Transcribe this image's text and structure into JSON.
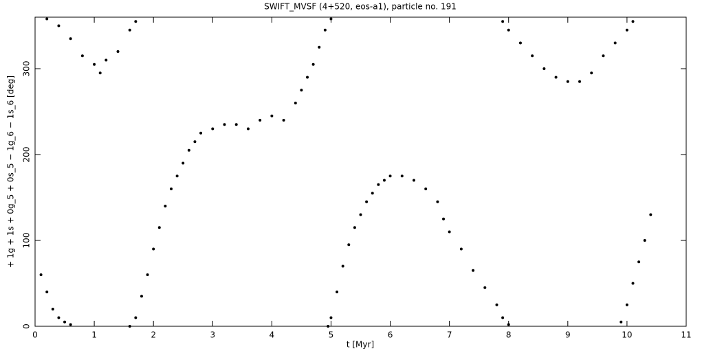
{
  "chart_data": {
    "type": "scatter",
    "title": "SWIFT_MVSF (4+520, eos-a1), particle no. 191",
    "x_label": "t [Myr]",
    "y_label": "+ 1g + 1s + 0g_5 + 0s_5 − 1g_6 − 1s_6 [deg]",
    "color": "#000000",
    "xlim": [
      0,
      11
    ],
    "xticks": [
      0,
      1,
      2,
      3,
      4,
      5,
      6,
      7,
      8,
      9,
      10,
      11
    ],
    "ylim": [
      0,
      360
    ],
    "yticks": [
      0,
      100,
      200,
      300
    ],
    "x": [
      0.1,
      0.2,
      0.3,
      0.4,
      0.5,
      0.6,
      0.2,
      0.4,
      0.6,
      0.8,
      1.0,
      1.1,
      1.2,
      1.4,
      1.6,
      1.7,
      1.6,
      1.7,
      1.8,
      1.9,
      2.0,
      2.1,
      2.2,
      2.3,
      2.4,
      2.5,
      2.6,
      2.7,
      2.8,
      3.0,
      3.2,
      3.4,
      3.6,
      3.8,
      4.0,
      4.2,
      4.4,
      4.5,
      4.6,
      4.7,
      4.8,
      4.9,
      5.0,
      4.95,
      5.0,
      5.1,
      5.2,
      5.3,
      5.4,
      5.5,
      5.6,
      5.7,
      5.8,
      5.9,
      6.0,
      6.2,
      6.4,
      6.6,
      6.8,
      6.9,
      7.0,
      7.2,
      7.4,
      7.6,
      7.8,
      7.9,
      8.0,
      7.9,
      8.0,
      8.2,
      8.4,
      8.6,
      8.8,
      9.0,
      9.2,
      9.4,
      9.6,
      9.8,
      10.0,
      10.1,
      9.9,
      10.0,
      10.1,
      10.2,
      10.3,
      10.4
    ],
    "values": [
      60,
      40,
      20,
      10,
      5,
      2,
      358,
      350,
      335,
      315,
      305,
      295,
      310,
      320,
      345,
      355,
      0,
      10,
      35,
      60,
      90,
      115,
      140,
      160,
      175,
      190,
      205,
      215,
      225,
      230,
      235,
      235,
      230,
      240,
      245,
      240,
      260,
      275,
      290,
      305,
      325,
      345,
      358,
      0,
      10,
      40,
      70,
      95,
      115,
      130,
      145,
      155,
      165,
      170,
      175,
      175,
      170,
      160,
      145,
      125,
      110,
      90,
      65,
      45,
      25,
      10,
      2,
      355,
      345,
      330,
      315,
      300,
      290,
      285,
      285,
      295,
      315,
      330,
      345,
      355,
      5,
      25,
      50,
      75,
      100,
      130
    ]
  }
}
